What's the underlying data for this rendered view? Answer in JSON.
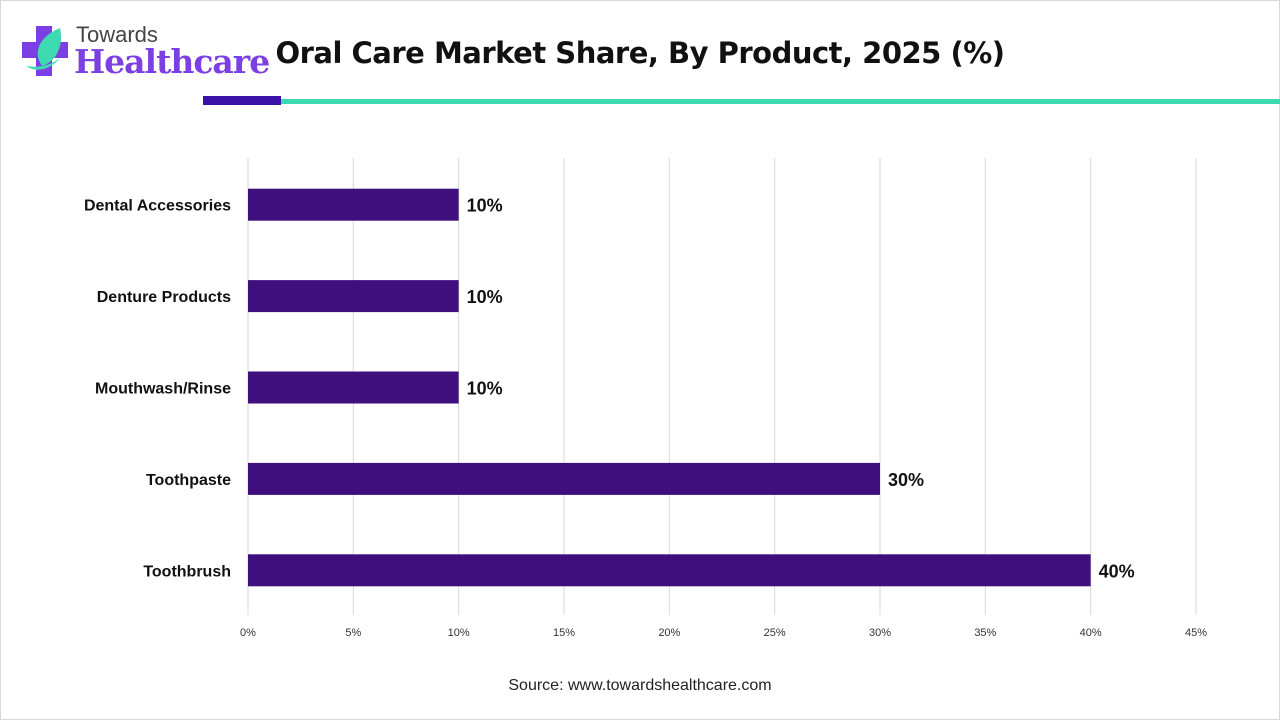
{
  "logo": {
    "line1": "Towards",
    "line2": "Healthcare"
  },
  "chart_data": {
    "type": "bar",
    "orientation": "horizontal",
    "title": "Oral Care Market Share, By Product, 2025 (%)",
    "categories": [
      "Dental Accessories",
      "Denture Products",
      "Mouthwash/Rinse",
      "Toothpaste",
      "Toothbrush"
    ],
    "values": [
      10,
      10,
      10,
      30,
      40
    ],
    "data_labels": [
      "10%",
      "10%",
      "10%",
      "30%",
      "40%"
    ],
    "xlim": [
      0,
      45
    ],
    "xticks": [
      "0%",
      "5%",
      "10%",
      "15%",
      "20%",
      "25%",
      "30%",
      "35%",
      "40%",
      "45%"
    ],
    "xlabel": "",
    "ylabel": "",
    "grid": "vertical",
    "bar_color": "#3f0f7d"
  },
  "source": "Source: www.towardshealthcare.com"
}
